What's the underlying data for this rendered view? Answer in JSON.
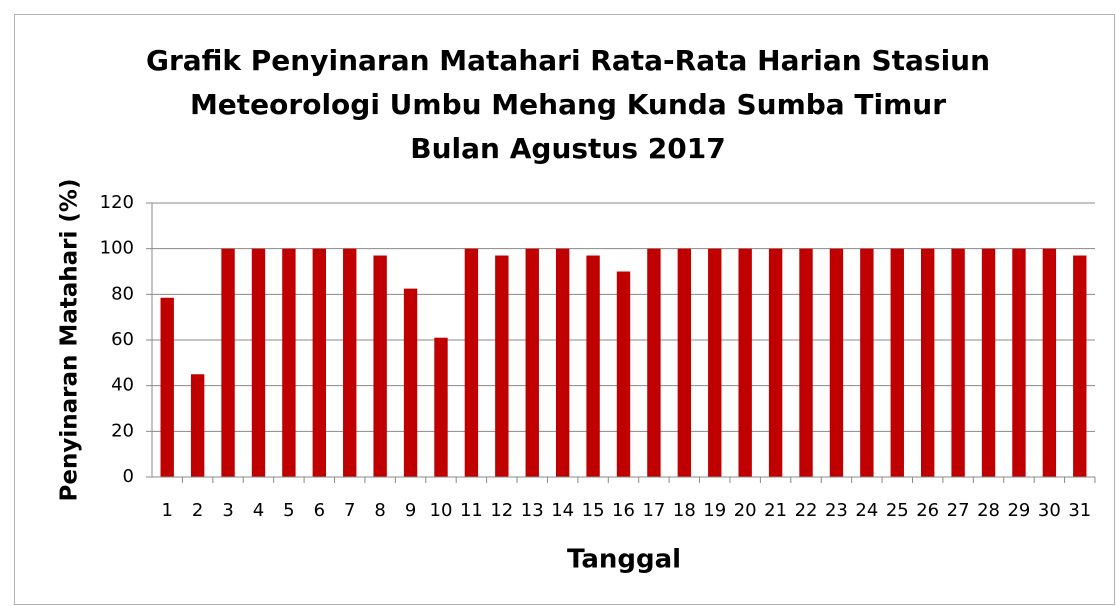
{
  "chart_data": {
    "type": "bar",
    "title": [
      "Grafik Penyinaran Matahari Rata-Rata Harian Stasiun",
      "Meteorologi Umbu Mehang Kunda Sumba Timur",
      "Bulan Agustus 2017"
    ],
    "x_label": "Tanggal",
    "y_label": "Penyinaran Matahari (%)",
    "categories": [
      "1",
      "2",
      "3",
      "4",
      "5",
      "6",
      "7",
      "8",
      "9",
      "10",
      "11",
      "12",
      "13",
      "14",
      "15",
      "16",
      "17",
      "18",
      "19",
      "20",
      "21",
      "22",
      "23",
      "24",
      "25",
      "26",
      "27",
      "28",
      "29",
      "30",
      "31"
    ],
    "values": [
      78.5,
      45,
      100,
      100,
      100,
      100,
      100,
      97,
      82.5,
      61,
      100,
      97,
      100,
      100,
      97,
      90,
      100,
      100,
      100,
      100,
      100,
      100,
      100,
      100,
      100,
      100,
      100,
      100,
      100,
      100,
      97
    ],
    "color": "#c00000",
    "ylim": [
      0,
      120
    ],
    "yticks": [
      0,
      20,
      40,
      60,
      80,
      100,
      120
    ],
    "grid": true
  }
}
